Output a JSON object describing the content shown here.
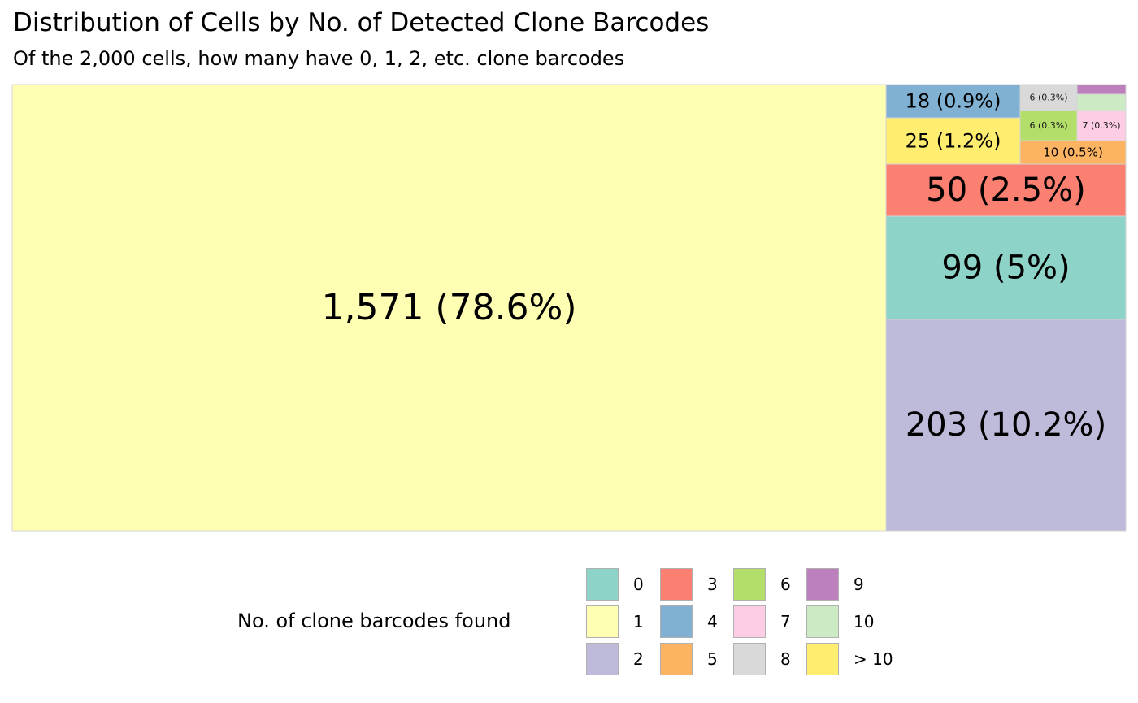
{
  "chart_data": {
    "type": "treemap",
    "title": "Distribution of Cells by No. of Detected Clone Barcodes",
    "subtitle": "Of the 2,000 cells, how many have 0, 1, 2, etc. clone barcodes",
    "total": 2000,
    "legend": {
      "title": "No. of clone barcodes found",
      "placement": "bottom",
      "entries": [
        {
          "key": "0",
          "label": "0",
          "color": "#8DD3C7"
        },
        {
          "key": "1",
          "label": "1",
          "color": "#FFFFB3"
        },
        {
          "key": "2",
          "label": "2",
          "color": "#BEBADA"
        },
        {
          "key": "3",
          "label": "3",
          "color": "#FB8072"
        },
        {
          "key": "4",
          "label": "4",
          "color": "#80B1D3"
        },
        {
          "key": "5",
          "label": "5",
          "color": "#FDB462"
        },
        {
          "key": "6",
          "label": "6",
          "color": "#B3DE69"
        },
        {
          "key": "7",
          "label": "7",
          "color": "#FCCDE5"
        },
        {
          "key": "8",
          "label": "8",
          "color": "#D9D9D9"
        },
        {
          "key": "9",
          "label": "9",
          "color": "#BC80BD"
        },
        {
          "key": "10",
          "label": "10",
          "color": "#CCEBC5"
        },
        {
          "key": "gt10",
          "label": "> 10",
          "color": "#FFED6F"
        }
      ]
    },
    "tiles": [
      {
        "key": "1",
        "value": 1571,
        "label": "1,571 (78.6%)"
      },
      {
        "key": "2",
        "value": 203,
        "label": "203 (10.2%)"
      },
      {
        "key": "0",
        "value": 99,
        "label": "99 (5%)"
      },
      {
        "key": "3",
        "value": 50,
        "label": "50 (2.5%)"
      },
      {
        "key": "gt10",
        "value": 25,
        "label": "25 (1.2%)"
      },
      {
        "key": "4",
        "value": 18,
        "label": "18 (0.9%)"
      },
      {
        "key": "5",
        "value": 10,
        "label": "10 (0.5%)"
      },
      {
        "key": "6",
        "value": 6,
        "label": "6 (0.3%)"
      },
      {
        "key": "7",
        "value": 7,
        "label": "7 (0.3%)"
      },
      {
        "key": "8",
        "value": 6,
        "label": "6 (0.3%)"
      },
      {
        "key": "10",
        "value": 3,
        "label": ""
      },
      {
        "key": "9",
        "value": 2,
        "label": ""
      }
    ]
  }
}
